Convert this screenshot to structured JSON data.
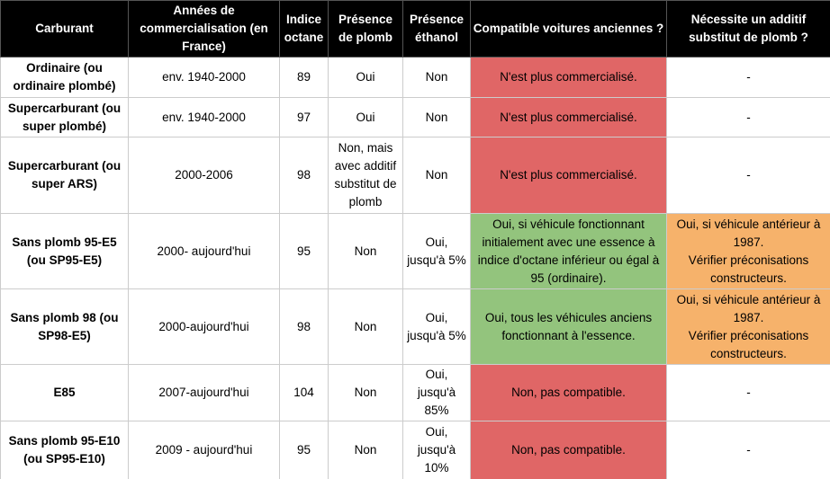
{
  "table": {
    "header": [
      "Carburant",
      "Années de commercialisation (en France)",
      "Indice octane",
      "Présence de plomb",
      "Présence éthanol",
      "Compatible voitures anciennes ?",
      "Nécessite un additif substitut de plomb ?"
    ],
    "rows": [
      [
        "Ordinaire (ou ordinaire plombé)",
        "env. 1940-2000",
        "89",
        "Oui",
        "Non",
        "N'est plus commercialisé.",
        "-"
      ],
      [
        "Supercarburant (ou super plombé)",
        "env. 1940-2000",
        "97",
        "Oui",
        "Non",
        "N'est plus commercialisé.",
        "-"
      ],
      [
        "Supercarburant (ou super ARS)",
        "2000-2006",
        "98",
        "Non, mais avec additif substitut de plomb",
        "Non",
        "N'est plus commercialisé.",
        "-"
      ],
      [
        "Sans plomb 95-E5 (ou SP95-E5)",
        "2000- aujourd'hui",
        "95",
        "Non",
        "Oui, jusqu'à 5%",
        "Oui, si véhicule fonctionnant initialement avec une essence à indice d'octane inférieur ou égal à 95 (ordinaire).",
        "Oui, si véhicule antérieur à 1987.\nVérifier préconisations constructeurs."
      ],
      [
        "Sans plomb 98 (ou SP98-E5)",
        "2000-aujourd'hui",
        "98",
        "Non",
        "Oui, jusqu'à 5%",
        "Oui, tous les véhicules anciens fonctionnant à l'essence.",
        "Oui, si véhicule antérieur à 1987.\nVérifier préconisations constructeurs."
      ],
      [
        "E85",
        "2007-aujourd'hui",
        "104",
        "Non",
        "Oui, jusqu'à 85%",
        "Non, pas compatible.",
        "-"
      ],
      [
        "Sans plomb 95-E10 (ou SP95-E10)",
        "2009 - aujourd'hui",
        "95",
        "Non",
        "Oui, jusqu'à 10%",
        "Non, pas compatible.",
        "-"
      ]
    ]
  }
}
